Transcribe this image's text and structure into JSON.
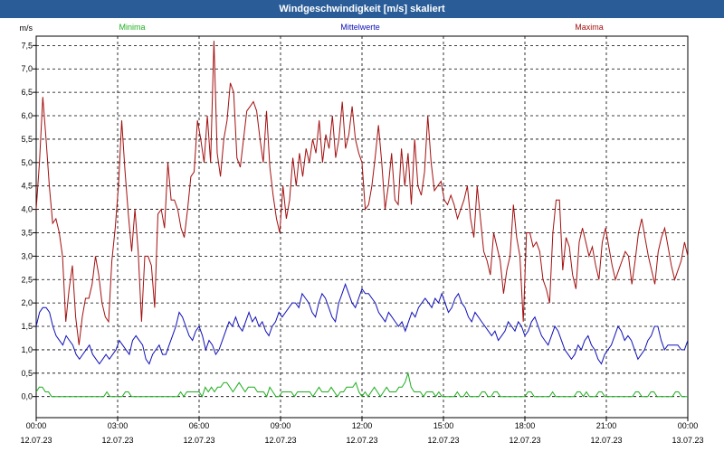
{
  "window": {
    "title": "Windgeschwindigkeit [m/s] skaliert"
  },
  "colors": {
    "min": "#1fae1f",
    "mean": "#1010b8",
    "max": "#a40f0f",
    "grid": "#000000",
    "titlebar": "#2a5d98"
  },
  "chart_data": {
    "type": "line",
    "title": "Windgeschwindigkeit [m/s] skaliert",
    "ylabel": "m/s",
    "ylim": [
      -0.45,
      7.7
    ],
    "yticks": [
      "0,0",
      "0,5",
      "1,0",
      "1,5",
      "2,0",
      "2,5",
      "3,0",
      "3,5",
      "4,0",
      "4,5",
      "5,0",
      "5,5",
      "6,0",
      "6,5",
      "7,0",
      "7,5"
    ],
    "xlim": [
      0,
      24
    ],
    "xticks": [
      {
        "time": "00:00",
        "date": "12.07.23"
      },
      {
        "time": "03:00",
        "date": "12.07.23"
      },
      {
        "time": "06:00",
        "date": "12.07.23"
      },
      {
        "time": "09:00",
        "date": "12.07.23"
      },
      {
        "time": "12:00",
        "date": "12.07.23"
      },
      {
        "time": "15:00",
        "date": "12.07.23"
      },
      {
        "time": "18:00",
        "date": "12.07.23"
      },
      {
        "time": "21:00",
        "date": "12.07.23"
      },
      {
        "time": "00:00",
        "date": "13.07.23"
      }
    ],
    "grid": true,
    "legend": "top",
    "series": [
      {
        "name": "Minima",
        "color": "#1fae1f",
        "values": [
          0.1,
          0.2,
          0.2,
          0.1,
          0.1,
          0,
          0,
          0,
          0,
          0,
          0,
          0,
          0,
          0,
          0,
          0,
          0,
          0,
          0,
          0,
          0,
          0,
          0,
          0.1,
          0,
          0,
          0,
          0,
          0,
          0.1,
          0.1,
          0,
          0,
          0,
          0,
          0,
          0,
          0,
          0,
          0,
          0,
          0,
          0,
          0,
          0,
          0,
          0,
          0.1,
          0,
          0.1,
          0.1,
          0.1,
          0.1,
          0.1,
          0,
          0.2,
          0.1,
          0.2,
          0.1,
          0.2,
          0.2,
          0.3,
          0.3,
          0.2,
          0.1,
          0.2,
          0.3,
          0.2,
          0.1,
          0.2,
          0.2,
          0.2,
          0.1,
          0.1,
          0.1,
          0,
          0.2,
          0.1,
          0,
          0,
          0.1,
          0.1,
          0.1,
          0.1,
          0,
          0.1,
          0.1,
          0.1,
          0.1,
          0.1,
          0,
          0.1,
          0.2,
          0.1,
          0.1,
          0.1,
          0.2,
          0.1,
          0,
          0.1,
          0.1,
          0.2,
          0.2,
          0.2,
          0.3,
          0.1,
          0,
          0.1,
          0,
          0.1,
          0.2,
          0.1,
          0,
          0.1,
          0.2,
          0.1,
          0.1,
          0.1,
          0.2,
          0.2,
          0.3,
          0.5,
          0.2,
          0.1,
          0.1,
          0.1,
          0,
          0.1,
          0.1,
          0.1,
          0,
          0.1,
          0,
          0,
          0,
          0,
          0,
          0.1,
          0,
          0,
          0.1,
          0,
          0,
          0,
          0,
          0.1,
          0.1,
          0,
          0,
          0.1,
          0.1,
          0,
          0,
          0,
          0,
          0,
          0,
          0,
          0,
          0,
          0.1,
          0.1,
          0,
          0,
          0,
          0,
          0,
          0,
          0.1,
          0,
          0,
          0,
          0,
          0,
          0,
          0,
          0.1,
          0.1,
          0,
          0.1,
          0,
          0,
          0,
          0.1,
          0.1,
          0,
          0,
          0,
          0,
          0,
          0,
          0,
          0,
          0,
          0,
          0.1,
          0.1,
          0,
          0,
          0,
          0.1,
          0.1,
          0,
          0,
          0,
          0,
          0,
          0,
          0.1,
          0.1,
          0,
          0,
          0
        ]
      },
      {
        "name": "Mittelwerte",
        "color": "#1010b8",
        "values": [
          1.5,
          1.8,
          1.9,
          1.9,
          1.8,
          1.5,
          1.3,
          1.2,
          1.1,
          1.3,
          1.2,
          1.1,
          0.9,
          0.8,
          0.9,
          1.0,
          1.1,
          0.9,
          0.8,
          0.7,
          0.8,
          0.9,
          0.8,
          0.9,
          1.0,
          1.2,
          1.1,
          1.0,
          0.9,
          1.2,
          1.3,
          1.2,
          1.1,
          0.8,
          0.7,
          0.9,
          1.0,
          1.1,
          0.9,
          0.9,
          1.1,
          1.3,
          1.5,
          1.8,
          1.7,
          1.5,
          1.3,
          1.2,
          1.4,
          1.5,
          1.3,
          1.0,
          1.2,
          1.1,
          0.9,
          1.0,
          1.2,
          1.4,
          1.6,
          1.5,
          1.7,
          1.5,
          1.4,
          1.6,
          1.8,
          1.6,
          1.7,
          1.5,
          1.6,
          1.4,
          1.3,
          1.5,
          1.6,
          1.8,
          1.7,
          1.8,
          1.9,
          2.0,
          2.0,
          1.9,
          2.2,
          2.1,
          2.0,
          1.8,
          1.7,
          2.0,
          2.2,
          2.1,
          1.9,
          1.7,
          1.6,
          2.0,
          2.2,
          2.4,
          2.2,
          2.0,
          1.9,
          2.1,
          2.3,
          2.2,
          2.2,
          2.1,
          2.0,
          1.8,
          1.7,
          1.6,
          1.8,
          1.7,
          1.6,
          1.5,
          1.6,
          1.4,
          1.6,
          1.8,
          1.7,
          1.9,
          2.0,
          2.1,
          2.0,
          1.9,
          2.1,
          2.0,
          2.2,
          2.0,
          1.8,
          1.9,
          2.1,
          2.2,
          2.0,
          1.9,
          1.7,
          1.6,
          1.8,
          1.7,
          1.6,
          1.5,
          1.4,
          1.3,
          1.4,
          1.2,
          1.3,
          1.4,
          1.6,
          1.5,
          1.4,
          1.6,
          1.5,
          1.3,
          1.4,
          1.6,
          1.7,
          1.5,
          1.3,
          1.2,
          1.1,
          1.3,
          1.5,
          1.4,
          1.2,
          1.0,
          0.9,
          0.8,
          0.9,
          1.1,
          1.0,
          1.2,
          1.3,
          1.1,
          1.0,
          0.8,
          0.7,
          0.9,
          1.0,
          1.1,
          1.3,
          1.5,
          1.4,
          1.2,
          1.3,
          1.2,
          1.0,
          0.8,
          0.9,
          1.0,
          1.2,
          1.3,
          1.5,
          1.5,
          1.2,
          1.0,
          1.1,
          1.1,
          1.1,
          1.1,
          1.0,
          1.0,
          1.2
        ]
      },
      {
        "name": "Maxima",
        "color": "#a40f0f",
        "values": [
          4.0,
          5.0,
          6.4,
          5.5,
          4.5,
          3.7,
          3.8,
          3.5,
          3.0,
          1.6,
          2.3,
          2.8,
          1.7,
          1.1,
          1.7,
          2.1,
          2.1,
          2.4,
          3.0,
          2.6,
          2.0,
          1.7,
          1.6,
          2.9,
          3.6,
          4.5,
          5.9,
          4.8,
          3.9,
          3.1,
          4.0,
          3.1,
          1.6,
          3.0,
          3.0,
          2.8,
          1.9,
          3.9,
          4.0,
          3.6,
          5.0,
          4.2,
          4.2,
          4.0,
          3.6,
          3.4,
          4.0,
          4.7,
          4.8,
          5.9,
          5.5,
          5.0,
          6.0,
          5.0,
          7.6,
          5.2,
          4.7,
          5.5,
          5.9,
          6.7,
          6.5,
          5.1,
          4.9,
          5.5,
          6.1,
          6.2,
          6.3,
          6.1,
          5.5,
          5.0,
          6.1,
          4.9,
          4.3,
          3.8,
          3.5,
          4.5,
          3.8,
          4.2,
          5.1,
          4.5,
          5.2,
          4.7,
          5.3,
          5.0,
          5.5,
          5.2,
          5.9,
          5.0,
          5.6,
          5.3,
          6.0,
          5.1,
          5.5,
          6.3,
          5.3,
          5.6,
          6.2,
          5.5,
          5.2,
          5.0,
          4.0,
          4.1,
          4.5,
          5.1,
          5.8,
          5.0,
          4.0,
          4.5,
          5.2,
          4.2,
          4.1,
          5.3,
          4.5,
          5.2,
          4.1,
          5.5,
          4.5,
          4.3,
          4.8,
          6.0,
          5.0,
          4.4,
          4.5,
          4.6,
          4.2,
          4.1,
          4.3,
          4.1,
          3.8,
          4.0,
          4.2,
          4.5,
          3.8,
          3.4,
          4.5,
          3.8,
          3.1,
          2.9,
          2.6,
          3.5,
          3.2,
          2.9,
          2.2,
          2.7,
          3.0,
          4.1,
          3.4,
          3.0,
          1.6,
          3.5,
          3.5,
          3.2,
          3.3,
          3.1,
          2.5,
          2.3,
          2.0,
          3.5,
          4.2,
          4.2,
          2.7,
          3.4,
          3.2,
          2.6,
          2.3,
          3.3,
          3.6,
          3.3,
          3.0,
          3.2,
          2.8,
          2.5,
          3.3,
          3.6,
          3.2,
          2.8,
          2.5,
          2.7,
          2.9,
          3.1,
          3.0,
          2.4,
          2.9,
          3.5,
          3.8,
          3.4,
          3.0,
          2.7,
          2.4,
          3.1,
          3.4,
          3.6,
          3.2,
          2.8,
          2.5,
          2.7,
          2.9,
          3.3,
          3.0
        ]
      }
    ]
  }
}
